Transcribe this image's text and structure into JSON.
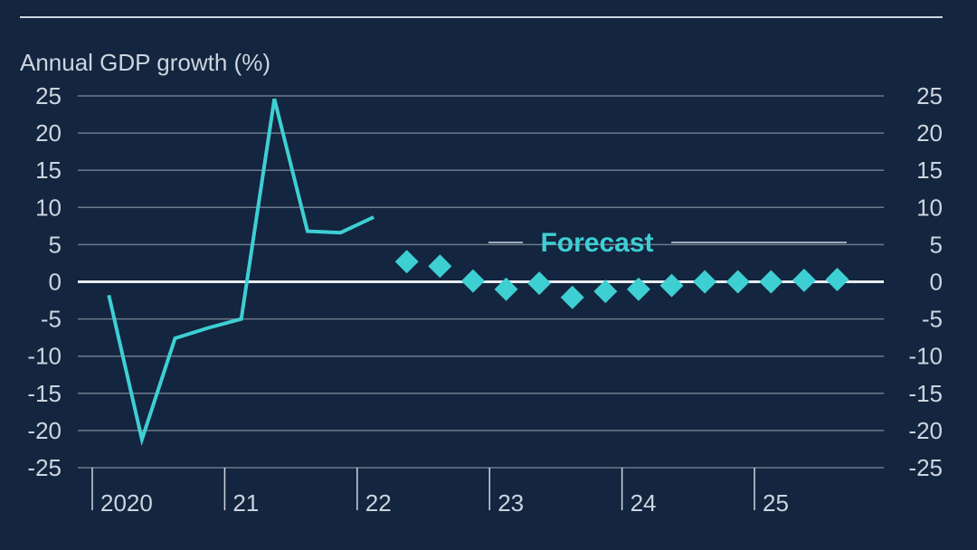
{
  "chart_data": {
    "type": "line",
    "ylabel": "Annual GDP growth (%)",
    "ylim": [
      -25,
      25
    ],
    "yticks": [
      25,
      20,
      15,
      10,
      5,
      0,
      -5,
      -10,
      -15,
      -20,
      -25
    ],
    "xlim": [
      2020.0,
      2026.0
    ],
    "year_ticks": [
      {
        "x": 2020,
        "label": "2020"
      },
      {
        "x": 2021,
        "label": "21"
      },
      {
        "x": 2022,
        "label": "22"
      },
      {
        "x": 2023,
        "label": "23"
      },
      {
        "x": 2024,
        "label": "24"
      },
      {
        "x": 2025,
        "label": "25"
      }
    ],
    "annotation": "Forecast",
    "grid": true,
    "colors": {
      "background": "#13253f",
      "series": "#3ecfd3",
      "grid": "#6d7a8b",
      "zero_line": "#e8ecf0",
      "text": "#cdd5df"
    },
    "series": [
      {
        "style": "line",
        "points": [
          {
            "x": 2020.125,
            "y": -1.8
          },
          {
            "x": 2020.375,
            "y": -21.2
          },
          {
            "x": 2020.625,
            "y": -7.6
          },
          {
            "x": 2020.875,
            "y": -6.2
          },
          {
            "x": 2021.125,
            "y": -5.0
          },
          {
            "x": 2021.375,
            "y": 24.6
          },
          {
            "x": 2021.625,
            "y": 6.8
          },
          {
            "x": 2021.875,
            "y": 6.6
          },
          {
            "x": 2022.125,
            "y": 8.7
          }
        ]
      },
      {
        "style": "markers",
        "points": [
          {
            "x": 2022.375,
            "y": 2.7
          },
          {
            "x": 2022.625,
            "y": 2.1
          },
          {
            "x": 2022.875,
            "y": 0.1
          },
          {
            "x": 2023.125,
            "y": -1.0
          },
          {
            "x": 2023.375,
            "y": -0.2
          },
          {
            "x": 2023.625,
            "y": -2.1
          },
          {
            "x": 2023.875,
            "y": -1.3
          },
          {
            "x": 2024.125,
            "y": -1.0
          },
          {
            "x": 2024.375,
            "y": -0.5
          },
          {
            "x": 2024.625,
            "y": 0.0
          },
          {
            "x": 2024.875,
            "y": 0.0
          },
          {
            "x": 2025.125,
            "y": 0.0
          },
          {
            "x": 2025.375,
            "y": 0.2
          },
          {
            "x": 2025.625,
            "y": 0.3
          }
        ]
      }
    ]
  }
}
